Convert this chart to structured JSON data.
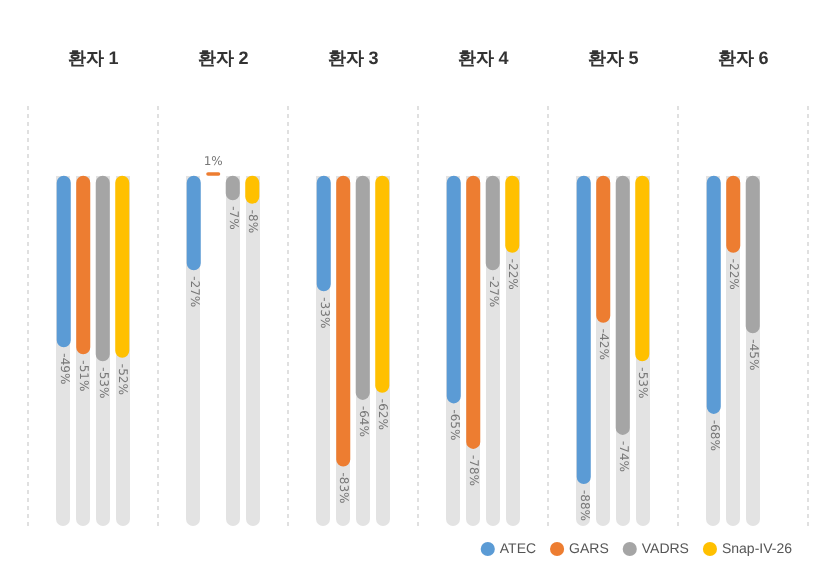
{
  "chart_data": {
    "type": "bar",
    "categories": [
      "환자 1",
      "환자 2",
      "환자 3",
      "환자 4",
      "환자 5",
      "환자 6"
    ],
    "series": [
      {
        "name": "ATEC",
        "color": "#5b9bd5",
        "values": [
          -49,
          -27,
          -33,
          -65,
          -88,
          -68
        ],
        "value_labels": [
          "-49%",
          "-27%",
          "-33%",
          "-65%",
          "-88%",
          "-68%"
        ]
      },
      {
        "name": "GARS",
        "color": "#ed7d31",
        "values": [
          -51,
          1,
          -83,
          -78,
          -42,
          -22
        ],
        "value_labels": [
          "-51%",
          "1%",
          "-83%",
          "-78%",
          "-42%",
          "-22%"
        ]
      },
      {
        "name": "VADRS",
        "color": "#a5a5a5",
        "values": [
          -53,
          -7,
          -64,
          -27,
          -74,
          -45
        ],
        "value_labels": [
          "-53%",
          "-7%",
          "-64%",
          "-27%",
          "-74%",
          "-45%"
        ]
      },
      {
        "name": "Snap-IV-26",
        "color": "#ffc000",
        "values": [
          -52,
          -8,
          -62,
          -22,
          -53,
          null
        ],
        "value_labels": [
          "-52%",
          "-8%",
          "-62%",
          "-22%",
          "-53%",
          null
        ]
      }
    ],
    "tick_labels": "x",
    "grid": "x",
    "legend": "bottom right"
  }
}
